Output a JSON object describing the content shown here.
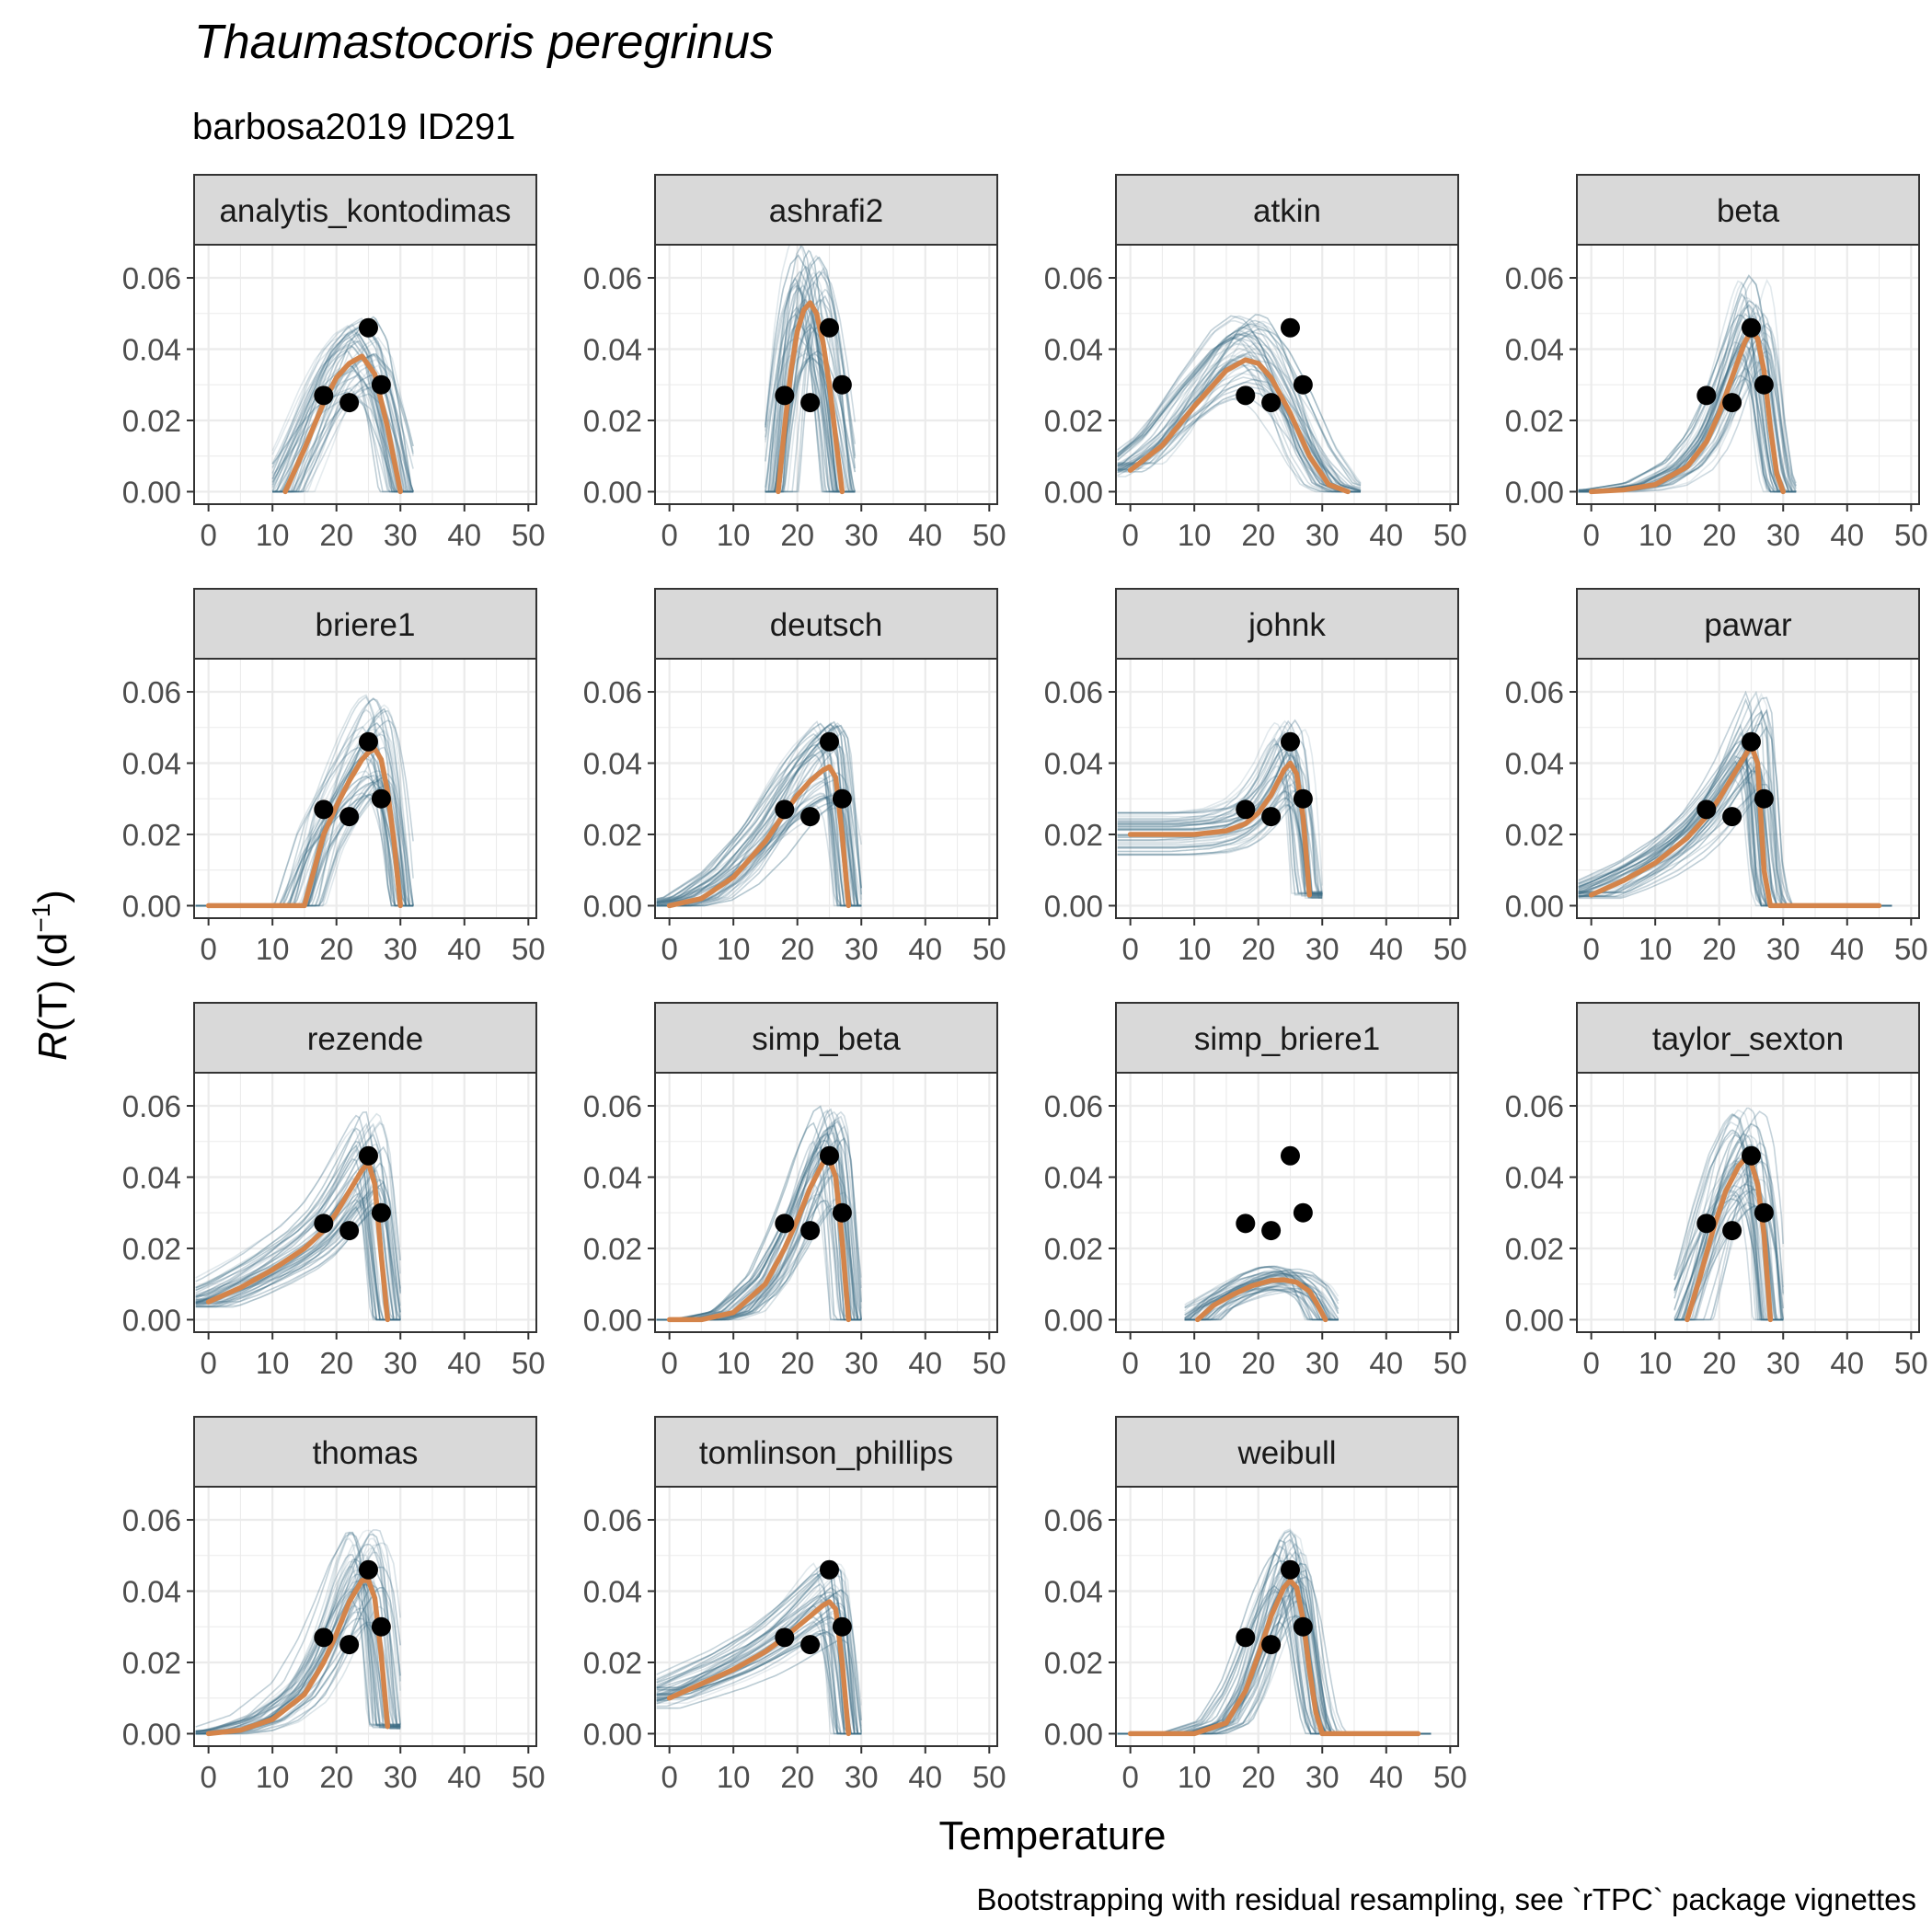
{
  "chart_data": {
    "type": "line",
    "title": "Thaumastocoris peregrinus",
    "subtitle": "barbosa2019 ID291",
    "xlabel": "Temperature",
    "ylabel_main": "R",
    "ylabel_rest": "(T) (d",
    "ylabel_exp": "−1",
    "ylabel_close": ")",
    "caption": "Bootstrapping with residual resampling, see `rTPC` package vignettes",
    "xlim": [
      -2.25,
      51.25
    ],
    "ylim": [
      -0.0035,
      0.0693
    ],
    "x_ticks": [
      0,
      10,
      20,
      30,
      40,
      50
    ],
    "y_ticks": [
      0.0,
      0.02,
      0.04,
      0.06
    ],
    "y_tick_labels": [
      "0.00",
      "0.02",
      "0.04",
      "0.06"
    ],
    "grid": true,
    "colors": {
      "fit": "#D4844A",
      "bootstrap": "#3F6E86",
      "points": "#000000",
      "strip_fill": "#D9D9D9",
      "grid": "#EBEBEB",
      "panel_border": "#333333"
    },
    "observations": {
      "x": [
        18,
        22,
        25,
        27
      ],
      "y": [
        0.027,
        0.025,
        0.046,
        0.03
      ]
    },
    "panels": [
      {
        "name": "analytis_kontodimas",
        "fit": {
          "x": [
            12,
            15,
            18,
            20,
            22,
            24,
            26,
            28,
            30
          ],
          "y": [
            0.0,
            0.012,
            0.025,
            0.032,
            0.036,
            0.038,
            0.033,
            0.018,
            0.0
          ]
        }
      },
      {
        "name": "ashrafi2",
        "fit": {
          "x": [
            17,
            18,
            19,
            20,
            21,
            22,
            23,
            24,
            25,
            26,
            27
          ],
          "y": [
            0.0,
            0.018,
            0.034,
            0.045,
            0.051,
            0.053,
            0.05,
            0.042,
            0.03,
            0.015,
            0.0
          ]
        }
      },
      {
        "name": "atkin",
        "fit": {
          "x": [
            0,
            5,
            10,
            15,
            18,
            20,
            22,
            25,
            28,
            31,
            34
          ],
          "y": [
            0.006,
            0.013,
            0.024,
            0.034,
            0.037,
            0.036,
            0.032,
            0.022,
            0.01,
            0.002,
            0.0
          ]
        }
      },
      {
        "name": "beta",
        "fit": {
          "x": [
            0,
            5,
            10,
            15,
            18,
            20,
            22,
            24,
            25,
            26,
            27,
            28,
            29,
            30
          ],
          "y": [
            0.0,
            0.0005,
            0.002,
            0.007,
            0.014,
            0.022,
            0.032,
            0.042,
            0.045,
            0.043,
            0.034,
            0.018,
            0.005,
            0.0
          ]
        }
      },
      {
        "name": "briere1",
        "fit": {
          "x": [
            0,
            10,
            15,
            18,
            20,
            22,
            24,
            25,
            26,
            27,
            28,
            29,
            30
          ],
          "y": [
            0.0,
            0.0,
            0.0,
            0.02,
            0.028,
            0.035,
            0.041,
            0.043,
            0.044,
            0.041,
            0.032,
            0.018,
            0.0
          ]
        }
      },
      {
        "name": "deutsch",
        "fit": {
          "x": [
            0,
            5,
            10,
            15,
            18,
            20,
            22,
            24,
            25,
            26,
            27,
            28
          ],
          "y": [
            0.0,
            0.002,
            0.008,
            0.018,
            0.026,
            0.031,
            0.035,
            0.038,
            0.039,
            0.036,
            0.02,
            0.0
          ]
        }
      },
      {
        "name": "johnk",
        "fit": {
          "x": [
            0,
            5,
            10,
            15,
            18,
            20,
            22,
            24,
            25,
            26,
            27,
            28
          ],
          "y": [
            0.02,
            0.02,
            0.02,
            0.021,
            0.023,
            0.026,
            0.031,
            0.038,
            0.04,
            0.037,
            0.025,
            0.003
          ]
        }
      },
      {
        "name": "pawar",
        "fit": {
          "x": [
            0,
            5,
            10,
            15,
            18,
            20,
            22,
            24,
            25,
            26,
            27,
            28,
            35,
            45
          ],
          "y": [
            0.003,
            0.007,
            0.012,
            0.019,
            0.025,
            0.03,
            0.036,
            0.042,
            0.045,
            0.04,
            0.01,
            0.0,
            0.0,
            0.0
          ]
        }
      },
      {
        "name": "rezende",
        "fit": {
          "x": [
            0,
            5,
            10,
            15,
            18,
            20,
            22,
            24,
            25,
            26,
            27,
            28
          ],
          "y": [
            0.005,
            0.009,
            0.014,
            0.02,
            0.025,
            0.03,
            0.036,
            0.042,
            0.044,
            0.038,
            0.018,
            0.0
          ]
        }
      },
      {
        "name": "simp_beta",
        "fit": {
          "x": [
            0,
            5,
            10,
            15,
            18,
            20,
            22,
            24,
            25,
            26,
            27,
            28
          ],
          "y": [
            0.0,
            0.0,
            0.002,
            0.01,
            0.02,
            0.028,
            0.037,
            0.044,
            0.045,
            0.04,
            0.022,
            0.0
          ]
        }
      },
      {
        "name": "simp_briere1",
        "fit": {
          "x": [
            10.5,
            13,
            16,
            19,
            22,
            24,
            26,
            28,
            29,
            30.5
          ],
          "y": [
            0.0,
            0.004,
            0.007,
            0.0095,
            0.011,
            0.0112,
            0.0105,
            0.008,
            0.005,
            0.0
          ]
        }
      },
      {
        "name": "taylor_sexton",
        "fit": {
          "x": [
            15,
            17,
            19,
            21,
            23,
            24,
            25,
            26,
            27,
            28
          ],
          "y": [
            0.0,
            0.012,
            0.025,
            0.036,
            0.043,
            0.045,
            0.044,
            0.038,
            0.024,
            0.0
          ]
        }
      },
      {
        "name": "thomas",
        "fit": {
          "x": [
            0,
            5,
            10,
            15,
            18,
            20,
            22,
            24,
            25,
            26,
            27,
            28
          ],
          "y": [
            0.0,
            0.001,
            0.004,
            0.011,
            0.02,
            0.028,
            0.037,
            0.043,
            0.043,
            0.038,
            0.022,
            0.002
          ]
        }
      },
      {
        "name": "tomlinson_phillips",
        "fit": {
          "x": [
            0,
            5,
            10,
            15,
            18,
            20,
            22,
            24,
            25,
            26,
            27,
            28
          ],
          "y": [
            0.01,
            0.014,
            0.018,
            0.023,
            0.027,
            0.03,
            0.033,
            0.036,
            0.037,
            0.035,
            0.02,
            0.0
          ]
        }
      },
      {
        "name": "weibull",
        "fit": {
          "x": [
            0,
            10,
            15,
            18,
            20,
            22,
            24,
            25,
            26,
            27,
            28,
            29,
            30,
            45
          ],
          "y": [
            0.0,
            0.0,
            0.003,
            0.012,
            0.022,
            0.033,
            0.041,
            0.043,
            0.041,
            0.032,
            0.018,
            0.006,
            0.0,
            0.0
          ]
        }
      }
    ]
  }
}
